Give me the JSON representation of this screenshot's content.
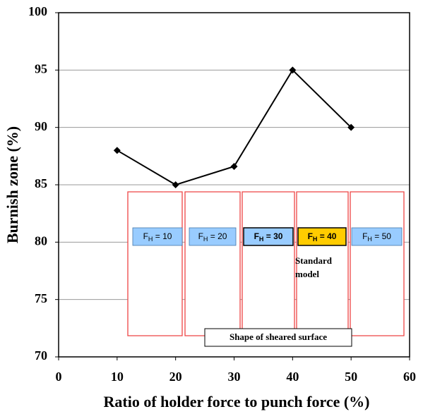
{
  "chart_data": {
    "type": "line",
    "x_label": "Ratio of holder force to punch force (%)",
    "y_label": "Burnish zone (%)",
    "x": [
      10,
      20,
      30,
      40,
      50
    ],
    "series": [
      {
        "color": "#000000",
        "values": [
          88,
          85,
          86.6,
          95,
          90
        ]
      }
    ],
    "xlim": [
      0,
      60
    ],
    "xticks": [
      0,
      10,
      20,
      30,
      40,
      50,
      60
    ],
    "ylim": [
      70,
      100
    ],
    "yticks": [
      70,
      75,
      80,
      85,
      90,
      95,
      100
    ],
    "grid": true,
    "inset": {
      "panels": [
        {
          "main": "F",
          "sub": "H",
          "rest": " = 10",
          "fill": "#99ccff",
          "bold": false
        },
        {
          "main": "F",
          "sub": "H",
          "rest": " = 20",
          "fill": "#99ccff",
          "bold": false
        },
        {
          "main": "F",
          "sub": "H",
          "rest": " = 30",
          "fill": "#99ccff",
          "bold": true
        },
        {
          "main": "F",
          "sub": "H",
          "rest": " = 40",
          "fill": "#ffcc00",
          "bold": true
        },
        {
          "main": "F",
          "sub": "H",
          "rest": " = 50",
          "fill": "#99ccff",
          "bold": false
        }
      ],
      "note": [
        "Standard",
        "model"
      ],
      "caption": "Shape of sheared surface"
    }
  }
}
